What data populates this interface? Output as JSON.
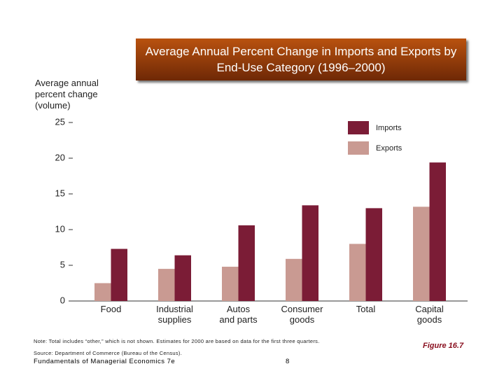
{
  "chart_data": {
    "type": "bar",
    "title": "Average Annual Percent Change in Imports and Exports by End-Use Category (1996–2000)",
    "y_label": "Average annual\npercent change\n(volume)",
    "categories": [
      "Food",
      "Industrial\nsupplies",
      "Autos\nand parts",
      "Consumer\ngoods",
      "Total",
      "Capital\ngoods"
    ],
    "series": [
      {
        "name": "Exports",
        "color": "#c99a92",
        "values": [
          2.5,
          4.5,
          4.8,
          5.9,
          8.0,
          13.2
        ]
      },
      {
        "name": "Imports",
        "color": "#7b1c36",
        "values": [
          7.3,
          6.4,
          10.6,
          13.4,
          13.0,
          19.4
        ]
      }
    ],
    "legend_order": [
      "Imports",
      "Exports"
    ],
    "legend": "upper right",
    "ylim": [
      0,
      25
    ],
    "yticks": [
      0,
      5,
      10,
      15,
      20,
      25
    ],
    "grid": false
  },
  "note": "Note: Total includes “other,” which is not shown. Estimates for 2000 are based on data for the first three quarters.",
  "source": "Source: Department of Commerce (Bureau of the Census).",
  "footer": "Fundamentals of Managerial Economics 7e",
  "page_number": 8,
  "figure": "Figure 16.7"
}
